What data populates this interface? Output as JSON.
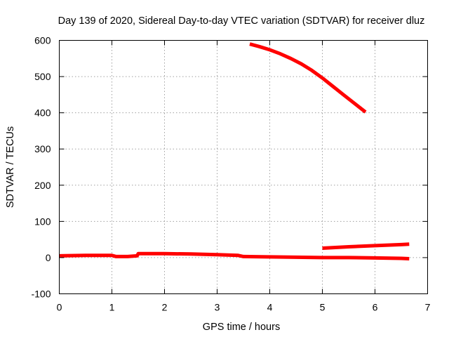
{
  "chart_data": {
    "type": "line",
    "title": "Day 139 of 2020, Sidereal Day-to-day VTEC variation (SDTVAR) for receiver dluz",
    "xlabel": "GPS time / hours",
    "ylabel": "SDTVAR / TECUs",
    "xlim": [
      0,
      7
    ],
    "ylim": [
      -100,
      600
    ],
    "xticks": [
      0,
      1,
      2,
      3,
      4,
      5,
      6,
      7
    ],
    "yticks": [
      -100,
      0,
      100,
      200,
      300,
      400,
      500,
      600
    ],
    "grid": true,
    "legend": "none",
    "color": "#ff0000",
    "series": [
      {
        "x": [
          3.62,
          3.8,
          4.0,
          4.2,
          4.4,
          4.6,
          4.8,
          5.0,
          5.2,
          5.4,
          5.6,
          5.82
        ],
        "y": [
          590,
          583,
          574,
          563,
          550,
          535,
          517,
          496,
          473,
          450,
          427,
          402
        ]
      },
      {
        "x": [
          0.0,
          0.5,
          1.0,
          1.08,
          1.3,
          1.48,
          1.5,
          2.0,
          2.5,
          3.0,
          3.4,
          3.5,
          4.0,
          4.5,
          5.0,
          5.5,
          6.0,
          6.5,
          6.65
        ],
        "y": [
          5,
          6,
          6,
          3,
          3,
          5,
          11,
          11,
          10,
          8,
          6,
          3,
          2,
          1,
          0,
          0,
          -1,
          -2,
          -3
        ]
      },
      {
        "x": [
          5.0,
          5.5,
          6.0,
          6.5,
          6.65
        ],
        "y": [
          26,
          30,
          33,
          36,
          37
        ]
      }
    ]
  }
}
